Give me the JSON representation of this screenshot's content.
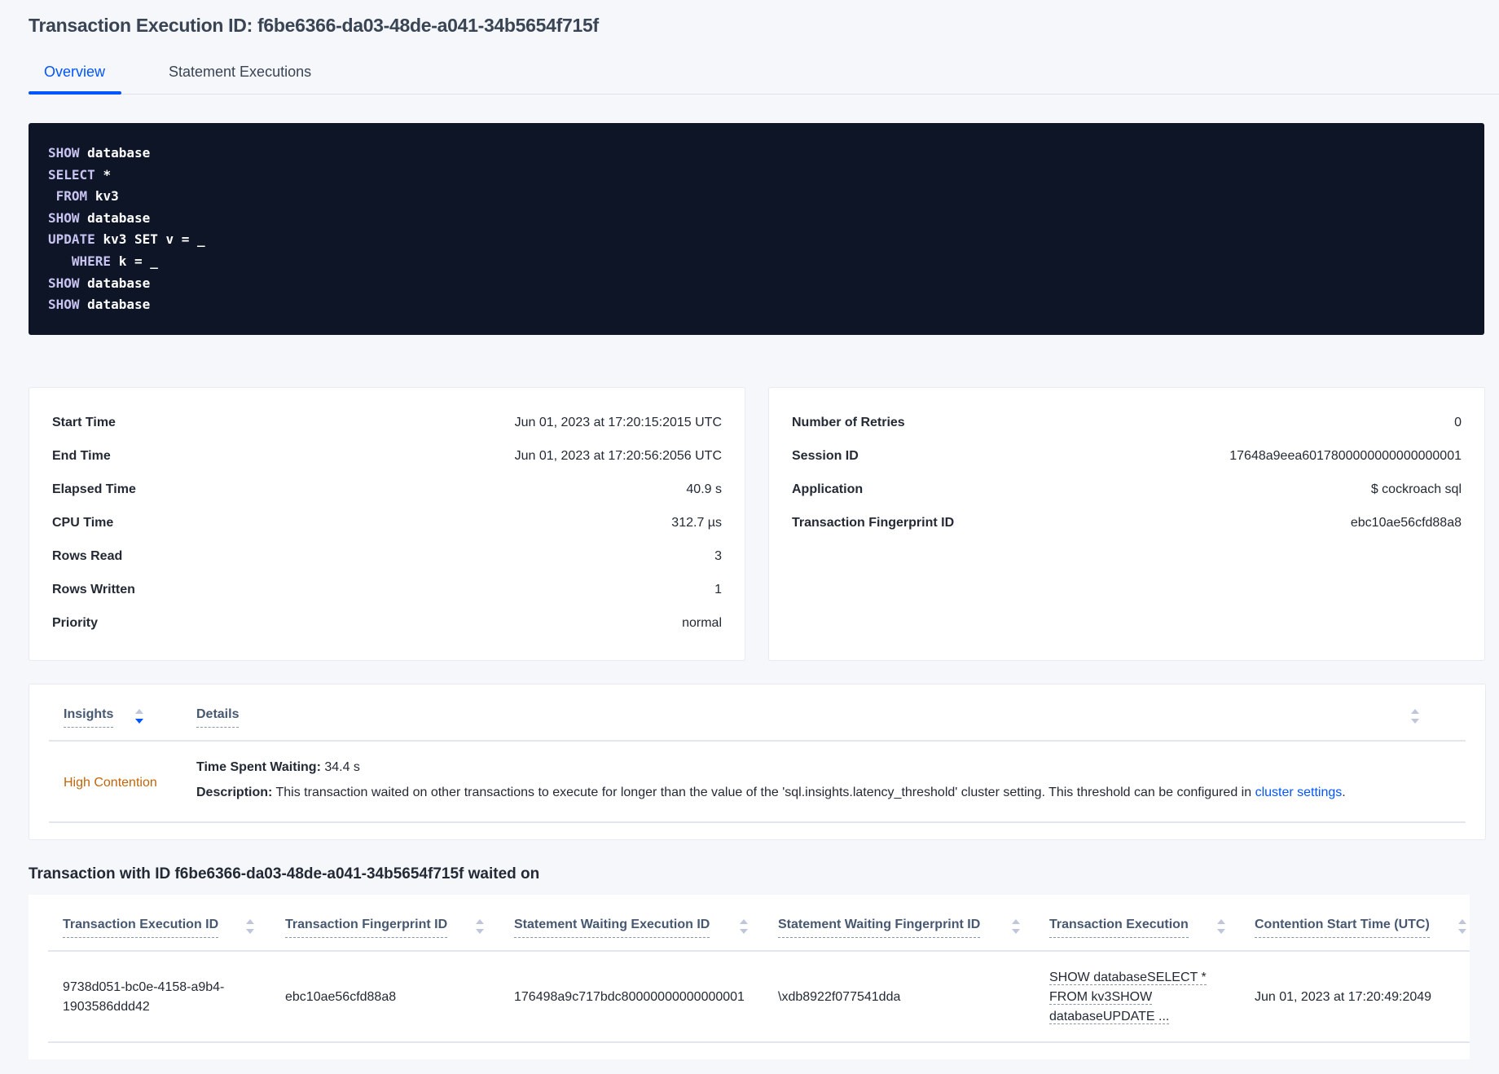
{
  "title": "Transaction Execution ID: f6be6366-da03-48de-a041-34b5654f715f",
  "tabs": [
    {
      "label": "Overview",
      "active": true
    },
    {
      "label": "Statement Executions",
      "active": false
    }
  ],
  "sql_lines": [
    [
      "SHOW",
      "database"
    ],
    [
      "SELECT",
      "*"
    ],
    [
      " FROM",
      "kv3"
    ],
    [
      "SHOW",
      "database"
    ],
    [
      "UPDATE",
      "kv3 SET v = _"
    ],
    [
      "   WHERE",
      "k = _"
    ],
    [
      "SHOW",
      "database"
    ],
    [
      "SHOW",
      "database"
    ]
  ],
  "summary_left": [
    {
      "label": "Start Time",
      "value": "Jun 01, 2023 at 17:20:15:2015 UTC"
    },
    {
      "label": "End Time",
      "value": "Jun 01, 2023 at 17:20:56:2056 UTC"
    },
    {
      "label": "Elapsed Time",
      "value": "40.9 s"
    },
    {
      "label": "CPU Time",
      "value": "312.7 µs"
    },
    {
      "label": "Rows Read",
      "value": "3"
    },
    {
      "label": "Rows Written",
      "value": "1"
    },
    {
      "label": "Priority",
      "value": "normal"
    }
  ],
  "summary_right": [
    {
      "label": "Number of Retries",
      "value": "0"
    },
    {
      "label": "Session ID",
      "value": "17648a9eea6017800000000000000001"
    },
    {
      "label": "Application",
      "value": "$ cockroach sql"
    },
    {
      "label": "Transaction Fingerprint ID",
      "value": "ebc10ae56cfd88a8",
      "link": true
    }
  ],
  "insights": {
    "headers": [
      "Insights",
      "Details"
    ],
    "row": {
      "insight": "High Contention",
      "time_label": "Time Spent Waiting:",
      "time_value": "34.4 s",
      "desc_label": "Description:",
      "desc_text": "This transaction waited on other transactions to execute for longer than the value of the 'sql.insights.latency_threshold' cluster setting. This threshold can be configured in ",
      "desc_link": "cluster settings",
      "desc_end": "."
    }
  },
  "waited_on": {
    "title": "Transaction with ID f6be6366-da03-48de-a041-34b5654f715f waited on",
    "headers": [
      "Transaction Execution ID",
      "Transaction Fingerprint ID",
      "Statement Waiting Execution ID",
      "Statement Waiting Fingerprint ID",
      "Transaction Execution",
      "Contention Start Time (UTC)"
    ],
    "row": {
      "txn_exec_id_1": "9738d051-bc0e-4158-a9b4-",
      "txn_exec_id_2": "1903586ddd42",
      "txn_fingerprint_id": "ebc10ae56cfd88a8",
      "stmt_exec_id": "176498a9c717bdc80000000000000001",
      "stmt_fingerprint_id": "\\xdb8922f077541dda",
      "txn_execution_1": "SHOW databaseSELECT *",
      "txn_execution_2": "FROM kv3SHOW",
      "txn_execution_3": "databaseUPDATE ...",
      "contention_start": "Jun 01, 2023 at 17:20:49:2049"
    }
  },
  "colors": {
    "accent": "#0055ff",
    "code_bg": "#0d1527",
    "insight_warning": "#c0650b"
  }
}
